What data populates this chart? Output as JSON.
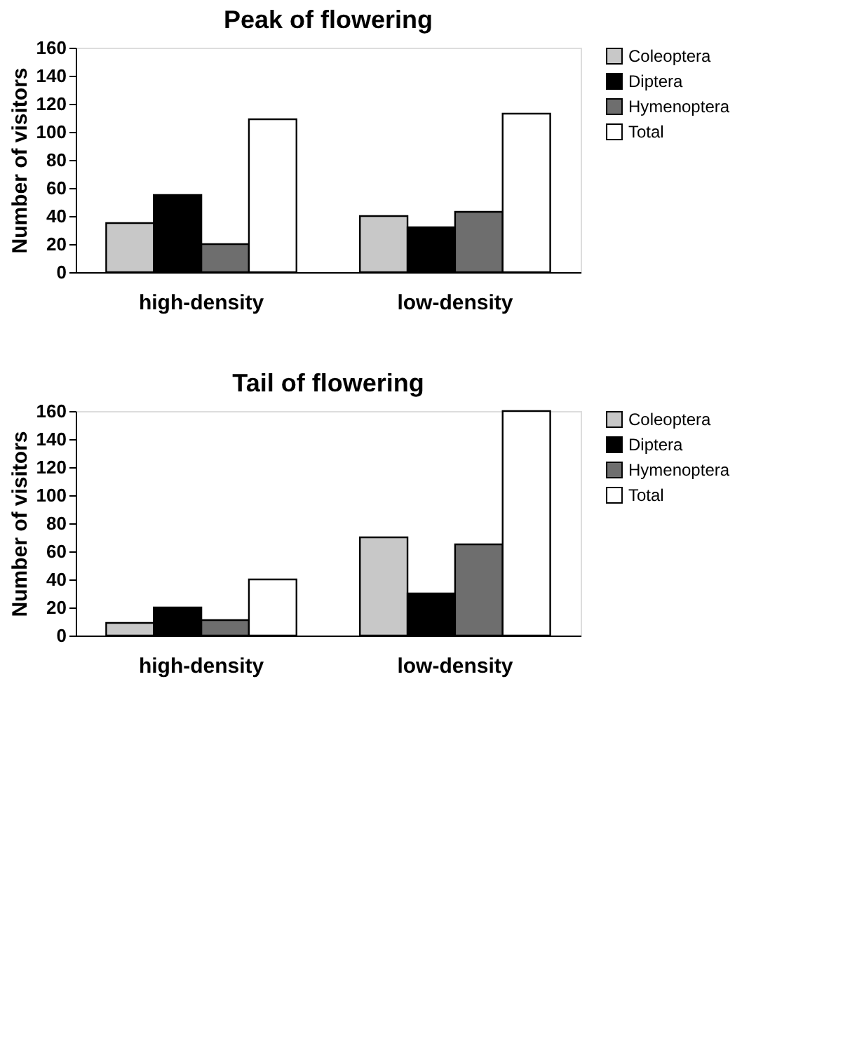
{
  "chart_data": [
    {
      "type": "bar",
      "title": "Peak of flowering",
      "ylabel": "Number of visitors",
      "categories": [
        "high-density",
        "low-density"
      ],
      "series": [
        {
          "name": "Coleoptera",
          "color": "#c8c8c8",
          "values": [
            35,
            40
          ]
        },
        {
          "name": "Diptera",
          "color": "#000000",
          "values": [
            55,
            32
          ]
        },
        {
          "name": "Hymenoptera",
          "color": "#6e6e6e",
          "values": [
            20,
            43
          ]
        },
        {
          "name": "Total",
          "color": "#ffffff",
          "values": [
            109,
            113
          ]
        }
      ],
      "ylim": [
        0,
        160
      ],
      "yticks": [
        0,
        20,
        40,
        60,
        80,
        100,
        120,
        140,
        160
      ],
      "grid": false,
      "legend": "top right"
    },
    {
      "type": "bar",
      "title": "Tail of flowering",
      "ylabel": "Number of visitors",
      "categories": [
        "high-density",
        "low-density"
      ],
      "series": [
        {
          "name": "Coleoptera",
          "color": "#c8c8c8",
          "values": [
            9,
            70
          ]
        },
        {
          "name": "Diptera",
          "color": "#000000",
          "values": [
            20,
            30
          ]
        },
        {
          "name": "Hymenoptera",
          "color": "#6e6e6e",
          "values": [
            11,
            65
          ]
        },
        {
          "name": "Total",
          "color": "#ffffff",
          "values": [
            40,
            160
          ]
        }
      ],
      "ylim": [
        0,
        160
      ],
      "yticks": [
        0,
        20,
        40,
        60,
        80,
        100,
        120,
        140,
        160
      ],
      "grid": false,
      "legend": "top right"
    }
  ]
}
